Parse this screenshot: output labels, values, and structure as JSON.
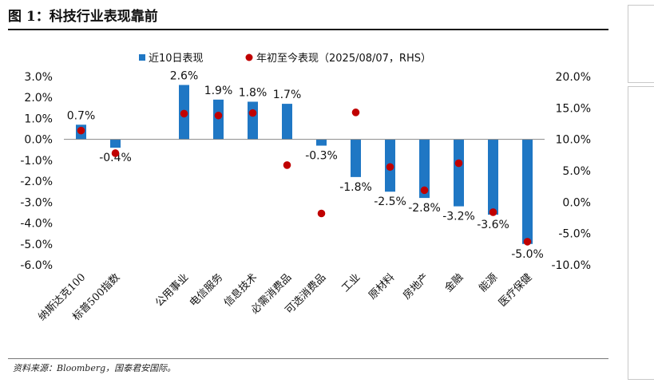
{
  "title": "图 1：科技行业表现靠前",
  "source": "资料来源：Bloomberg，国泰君安国际。",
  "colors": {
    "bar": "#1f77c4",
    "marker": "#c00000",
    "axis": "#888888"
  },
  "chart_data": {
    "type": "bar",
    "categories": [
      "纳斯达克100",
      "标普500指数",
      "",
      "公用事业",
      "电信服务",
      "信息技术",
      "必需消费品",
      "可选消费品",
      "工业",
      "原材料",
      "房地产",
      "金融",
      "能源",
      "医疗保健"
    ],
    "series": [
      {
        "name": "近10日表现",
        "type": "bar",
        "axis": "left",
        "values": [
          0.7,
          -0.4,
          null,
          2.6,
          1.9,
          1.8,
          1.7,
          -0.3,
          -1.8,
          -2.5,
          -2.8,
          -3.2,
          -3.6,
          -5.0
        ],
        "labels": [
          "0.7%",
          "-0.4%",
          "",
          "2.6%",
          "1.9%",
          "1.8%",
          "1.7%",
          "-0.3%",
          "-1.8%",
          "-2.5%",
          "-2.8%",
          "-3.2%",
          "-3.6%",
          "-5.0%"
        ]
      },
      {
        "name": "年初至今表现（2025/08/07，RHS）",
        "type": "scatter",
        "axis": "right",
        "values": [
          11.4,
          7.8,
          null,
          14.1,
          13.8,
          14.2,
          5.9,
          -1.8,
          14.3,
          5.6,
          1.9,
          6.2,
          -1.6,
          -6.3
        ]
      }
    ],
    "y_left": {
      "min": -6.0,
      "max": 3.0,
      "step": 1.0,
      "ticks": [
        "3.0%",
        "2.0%",
        "1.0%",
        "0.0%",
        "-1.0%",
        "-2.0%",
        "-3.0%",
        "-4.0%",
        "-5.0%",
        "-6.0%"
      ]
    },
    "y_right": {
      "min": -10.0,
      "max": 20.0,
      "step": 5.0,
      "ticks": [
        "20.0%",
        "15.0%",
        "10.0%",
        "5.0%",
        "0.0%",
        "-5.0%",
        "-10.0%"
      ]
    },
    "legend_position": "top-center",
    "grid": false
  }
}
